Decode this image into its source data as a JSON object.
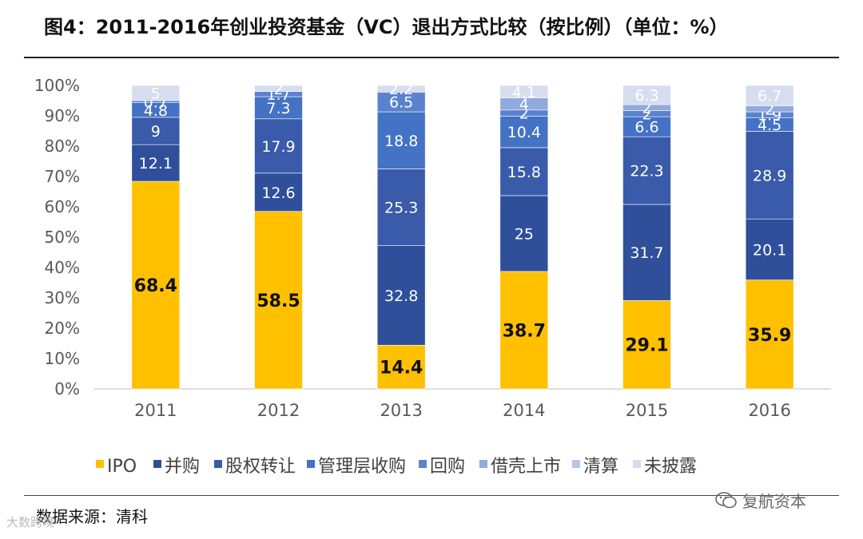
{
  "title": "图4：2011-2016年创业投资基金（VC）退出方式比较（按比例）（单位：%）",
  "source": "数据来源：清科",
  "watermark": "复航资本",
  "watermark_left": "大数跨境",
  "colors": {
    "IPO": "#FFC000",
    "并购": "#2F4F9B",
    "股权转让": "#3A5BAA",
    "管理层收购": "#4472C4",
    "回购": "#5B82CE",
    "借壳上市": "#8FAADC",
    "清算": "#B4C7E7",
    "未披露": "#D6DDEF"
  },
  "chart_data": {
    "type": "bar",
    "stacked": true,
    "categories": [
      "2011",
      "2012",
      "2013",
      "2014",
      "2015",
      "2016"
    ],
    "ylim": [
      0,
      100
    ],
    "yticks": [
      "0%",
      "10%",
      "20%",
      "30%",
      "40%",
      "50%",
      "60%",
      "70%",
      "80%",
      "90%",
      "100%"
    ],
    "legend_position": "bottom",
    "series": [
      {
        "name": "IPO",
        "values": [
          68.4,
          58.5,
          14.4,
          38.7,
          29.1,
          35.9
        ],
        "labels": [
          "68.4",
          "58.5",
          "14.4",
          "38.7",
          "29.1",
          "35.9"
        ]
      },
      {
        "name": "并购",
        "values": [
          12.1,
          12.6,
          32.8,
          25,
          31.7,
          20.1
        ],
        "labels": [
          "12.1",
          "12.6",
          "32.8",
          "25",
          "31.7",
          "20.1"
        ]
      },
      {
        "name": "股权转让",
        "values": [
          9,
          17.9,
          25.3,
          15.8,
          22.3,
          28.9
        ],
        "labels": [
          "9",
          "17.9",
          "25.3",
          "15.8",
          "22.3",
          "28.9"
        ]
      },
      {
        "name": "管理层收购",
        "values": [
          4.8,
          7.3,
          18.8,
          10.4,
          6.6,
          4.5
        ],
        "labels": [
          "4.8",
          "7.3",
          "18.8",
          "10.4",
          "6.6",
          "4.5"
        ]
      },
      {
        "name": "回购",
        "values": [
          0.7,
          1.7,
          6.5,
          2,
          2,
          1.9
        ],
        "labels": [
          "0.7",
          "1.7",
          "6.5",
          "2",
          "2",
          "1.9"
        ]
      },
      {
        "name": "借壳上市",
        "values": [
          0,
          0,
          0,
          4,
          2,
          2
        ],
        "labels": [
          "",
          "",
          "",
          "4",
          "2",
          "2"
        ]
      },
      {
        "name": "清算",
        "values": [
          0,
          0,
          0,
          0,
          0,
          0
        ],
        "labels": [
          "",
          "",
          "",
          "",
          "",
          ""
        ]
      },
      {
        "name": "未披露",
        "values": [
          5,
          2,
          2.2,
          4.1,
          6.3,
          6.7
        ],
        "labels": [
          "5",
          "2",
          "2.2",
          "4.1",
          "6.3",
          "6.7"
        ]
      }
    ]
  }
}
